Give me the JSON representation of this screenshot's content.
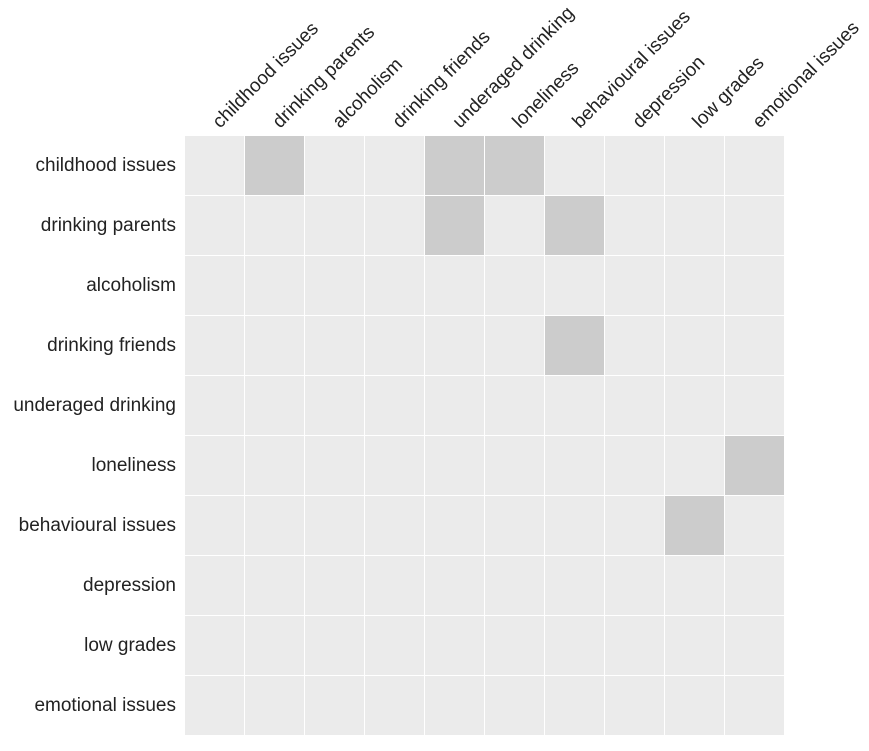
{
  "chart_data": {
    "type": "heatmap",
    "title": "",
    "xlabel": "",
    "ylabel": "",
    "grid": true,
    "legend": "none",
    "rows": [
      "childhood issues",
      "drinking parents",
      "alcoholism",
      "drinking friends",
      "underaged drinking",
      "loneliness",
      "behavioural issues",
      "depression",
      "low grades",
      "emotional issues"
    ],
    "columns": [
      "childhood issues",
      "drinking parents",
      "alcoholism",
      "drinking friends",
      "underaged drinking",
      "loneliness",
      "behavioural issues",
      "depression",
      "low grades",
      "emotional issues"
    ],
    "values": [
      [
        0,
        1,
        0,
        0,
        1,
        1,
        0,
        0,
        0,
        0
      ],
      [
        0,
        0,
        0,
        0,
        1,
        0,
        1,
        0,
        0,
        0
      ],
      [
        0,
        0,
        0,
        0,
        0,
        0,
        0,
        0,
        0,
        0
      ],
      [
        0,
        0,
        0,
        0,
        0,
        0,
        1,
        0,
        0,
        0
      ],
      [
        0,
        0,
        0,
        0,
        0,
        0,
        0,
        0,
        0,
        0
      ],
      [
        0,
        0,
        0,
        0,
        0,
        0,
        0,
        0,
        0,
        1
      ],
      [
        0,
        0,
        0,
        0,
        0,
        0,
        0,
        0,
        1,
        0
      ],
      [
        0,
        0,
        0,
        0,
        0,
        0,
        0,
        0,
        0,
        0
      ],
      [
        0,
        0,
        0,
        0,
        0,
        0,
        0,
        0,
        0,
        0
      ],
      [
        0,
        0,
        0,
        0,
        0,
        0,
        0,
        0,
        0,
        0
      ]
    ],
    "colors": {
      "empty_cell": "#ebebeb",
      "filled_cell": "#cccccc",
      "grid_line": "#ffffff",
      "label_text": "#222222"
    }
  }
}
